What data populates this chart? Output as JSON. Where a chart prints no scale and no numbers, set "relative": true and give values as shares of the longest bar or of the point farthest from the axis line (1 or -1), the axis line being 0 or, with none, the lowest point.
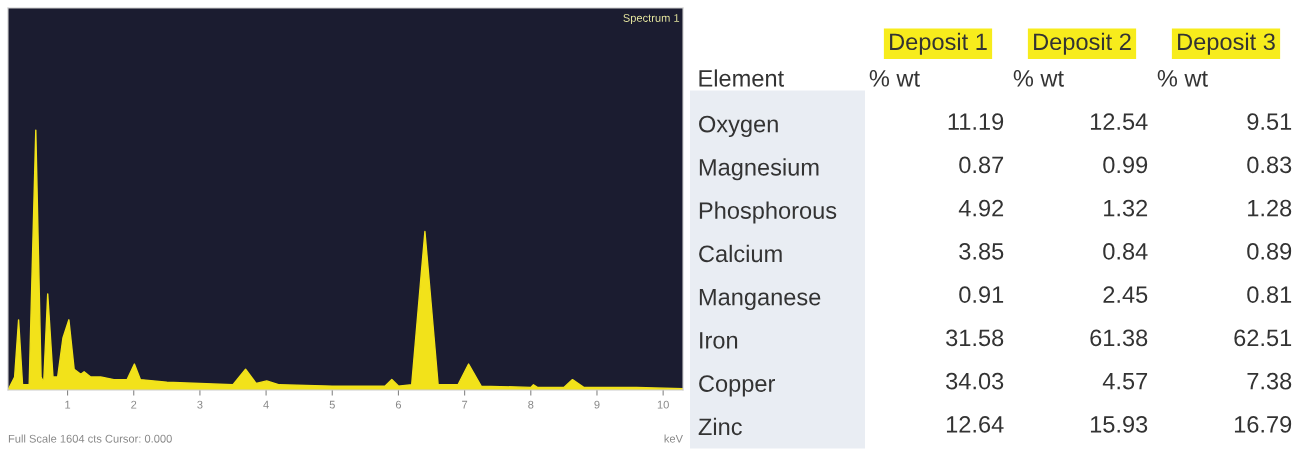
{
  "chart_data": [
    {
      "type": "area",
      "relative": true,
      "xlabel": "keV",
      "color": "#f2e21a",
      "x": [
        0.1,
        0.2,
        0.26,
        0.32,
        0.42,
        0.52,
        0.6,
        0.64,
        0.7,
        0.78,
        0.85,
        0.93,
        1.02,
        1.1,
        1.2,
        1.25,
        1.35,
        1.5,
        1.7,
        1.9,
        2.01,
        2.1,
        2.5,
        3.0,
        3.5,
        3.69,
        3.85,
        4.01,
        4.2,
        5.0,
        5.8,
        5.9,
        6.0,
        6.2,
        6.4,
        6.6,
        6.9,
        7.06,
        7.25,
        8.0,
        8.04,
        8.1,
        8.5,
        8.63,
        8.8,
        9.6,
        10.3
      ],
      "values": [
        0,
        0.05,
        0.27,
        0.02,
        0.02,
        1.0,
        0.05,
        0.03,
        0.37,
        0.05,
        0.05,
        0.2,
        0.27,
        0.08,
        0.06,
        0.07,
        0.05,
        0.05,
        0.04,
        0.04,
        0.1,
        0.04,
        0.03,
        0.025,
        0.02,
        0.08,
        0.025,
        0.035,
        0.02,
        0.015,
        0.015,
        0.04,
        0.015,
        0.02,
        0.61,
        0.02,
        0.02,
        0.1,
        0.015,
        0.01,
        0.02,
        0.01,
        0.01,
        0.04,
        0.01,
        0.01,
        0.005
      ],
      "xlim": [
        0.1,
        10.3
      ],
      "xticks": [
        1,
        2,
        3,
        4,
        5,
        6,
        7,
        8,
        9,
        10
      ],
      "annotations": [
        "Spectrum 1",
        "Full Scale 1604 cts Cursor: 0.000"
      ]
    },
    {
      "type": "heatmap",
      "ylabel": "Element",
      "categories": [
        "Deposit 1",
        "Deposit 2",
        "Deposit 3"
      ],
      "y_categories": [
        "Oxygen",
        "Magnesium",
        "Phosphorous",
        "Calcium",
        "Manganese",
        "Iron",
        "Copper",
        "Zinc"
      ],
      "cells": [
        [
          11.19,
          12.54,
          9.51
        ],
        [
          0.87,
          0.99,
          0.83
        ],
        [
          4.92,
          1.32,
          1.28
        ],
        [
          3.85,
          0.84,
          0.89
        ],
        [
          0.91,
          2.45,
          0.81
        ],
        [
          31.58,
          61.38,
          62.51
        ],
        [
          34.03,
          4.57,
          7.38
        ],
        [
          12.64,
          15.93,
          16.79
        ]
      ],
      "data_labels": true,
      "annotations": [
        "% wt",
        "% wt",
        "% wt"
      ]
    }
  ]
}
